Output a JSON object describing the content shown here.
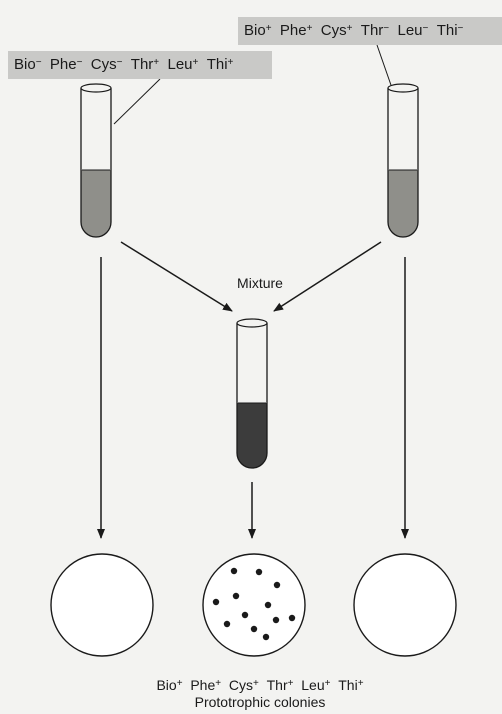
{
  "strains": {
    "left": {
      "genes": [
        {
          "name": "Bio",
          "sign": "−"
        },
        {
          "name": "Phe",
          "sign": "−"
        },
        {
          "name": "Cys",
          "sign": "−"
        },
        {
          "name": "Thr",
          "sign": "+"
        },
        {
          "name": "Leu",
          "sign": "+"
        },
        {
          "name": "Thi",
          "sign": "+"
        }
      ]
    },
    "right": {
      "genes": [
        {
          "name": "Bio",
          "sign": "+"
        },
        {
          "name": "Phe",
          "sign": "+"
        },
        {
          "name": "Cys",
          "sign": "+"
        },
        {
          "name": "Thr",
          "sign": "−"
        },
        {
          "name": "Leu",
          "sign": "−"
        },
        {
          "name": "Thi",
          "sign": "−"
        }
      ]
    }
  },
  "mixture_label": "Mixture",
  "result": {
    "genes": [
      {
        "name": "Bio",
        "sign": "+"
      },
      {
        "name": "Phe",
        "sign": "+"
      },
      {
        "name": "Cys",
        "sign": "+"
      },
      {
        "name": "Thr",
        "sign": "+"
      },
      {
        "name": "Leu",
        "sign": "+"
      },
      {
        "name": "Thi",
        "sign": "+"
      }
    ],
    "caption": "Prototrophic colonies"
  },
  "colors": {
    "culture_light": "#8f8f8a",
    "culture_dark": "#3c3c3c",
    "label_box": "#c9c9c7",
    "colony": "#1a1a1a"
  },
  "plates": {
    "left": {
      "colonies": 0
    },
    "middle": {
      "colonies": 12
    },
    "right": {
      "colonies": 0
    }
  }
}
